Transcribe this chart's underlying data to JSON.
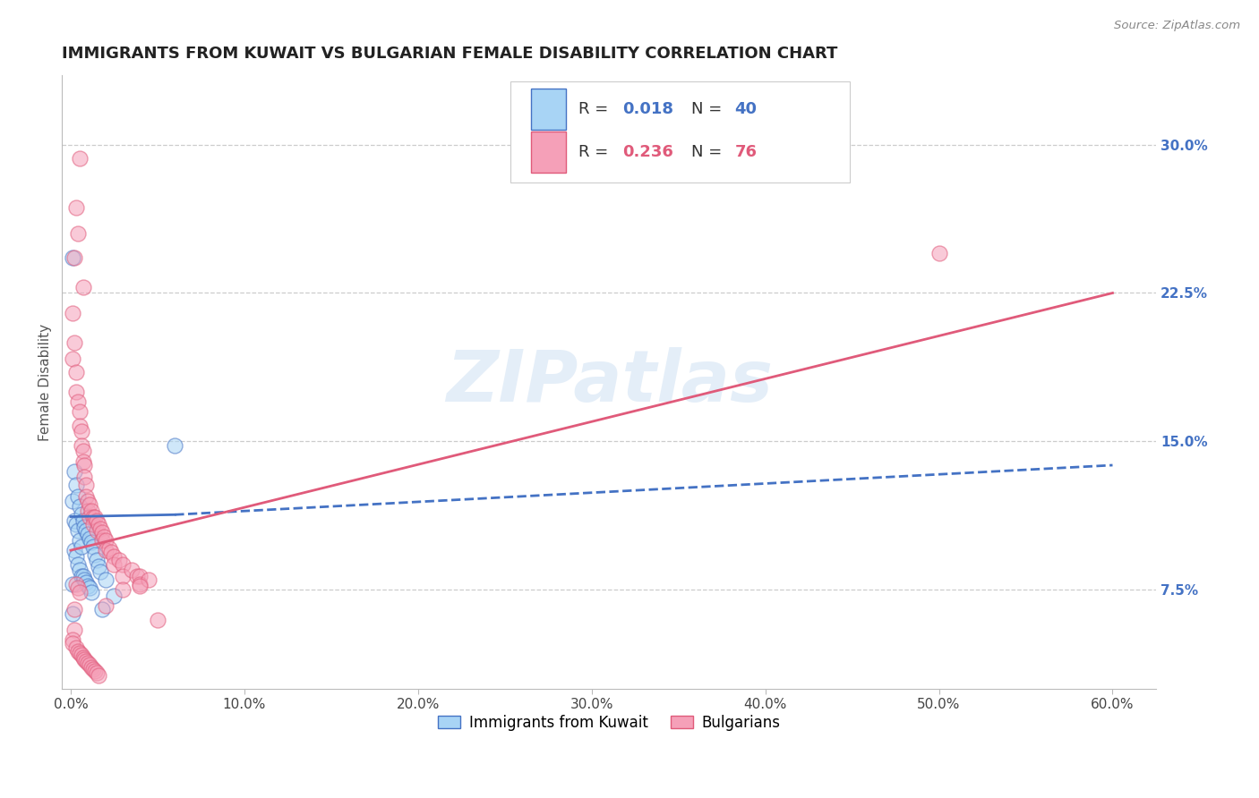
{
  "title": "IMMIGRANTS FROM KUWAIT VS BULGARIAN FEMALE DISABILITY CORRELATION CHART",
  "source": "Source: ZipAtlas.com",
  "ylabel": "Female Disability",
  "xlabel_ticks": [
    "0.0%",
    "10.0%",
    "20.0%",
    "30.0%",
    "40.0%",
    "50.0%",
    "60.0%"
  ],
  "xlabel_vals": [
    0.0,
    0.1,
    0.2,
    0.3,
    0.4,
    0.5,
    0.6
  ],
  "ylabel_ticks": [
    "7.5%",
    "15.0%",
    "22.5%",
    "30.0%"
  ],
  "ylabel_vals": [
    0.075,
    0.15,
    0.225,
    0.3
  ],
  "ylim": [
    0.025,
    0.335
  ],
  "xlim": [
    -0.005,
    0.625
  ],
  "watermark": "ZIPatlas",
  "color_kuwait": "#a8d4f5",
  "color_bulgarian": "#f5a0b8",
  "trendline_kuwait_color": "#4472C4",
  "trendline_bulgarian_color": "#E05A7A",
  "kuwait_scatter_x": [
    0.001,
    0.001,
    0.001,
    0.002,
    0.002,
    0.002,
    0.003,
    0.003,
    0.003,
    0.004,
    0.004,
    0.004,
    0.005,
    0.005,
    0.005,
    0.006,
    0.006,
    0.006,
    0.007,
    0.007,
    0.008,
    0.008,
    0.009,
    0.009,
    0.01,
    0.01,
    0.011,
    0.011,
    0.012,
    0.012,
    0.013,
    0.014,
    0.015,
    0.016,
    0.017,
    0.018,
    0.02,
    0.025,
    0.06,
    0.001
  ],
  "kuwait_scatter_y": [
    0.243,
    0.12,
    0.078,
    0.135,
    0.11,
    0.095,
    0.128,
    0.108,
    0.092,
    0.122,
    0.105,
    0.088,
    0.117,
    0.1,
    0.085,
    0.113,
    0.097,
    0.082,
    0.11,
    0.082,
    0.107,
    0.08,
    0.105,
    0.079,
    0.103,
    0.077,
    0.101,
    0.076,
    0.099,
    0.074,
    0.097,
    0.093,
    0.09,
    0.087,
    0.084,
    0.065,
    0.08,
    0.072,
    0.148,
    0.063
  ],
  "bulgarian_scatter_x": [
    0.005,
    0.003,
    0.004,
    0.002,
    0.007,
    0.001,
    0.002,
    0.001,
    0.003,
    0.003,
    0.004,
    0.005,
    0.005,
    0.006,
    0.006,
    0.007,
    0.007,
    0.008,
    0.008,
    0.009,
    0.009,
    0.01,
    0.01,
    0.011,
    0.011,
    0.012,
    0.013,
    0.013,
    0.014,
    0.015,
    0.015,
    0.016,
    0.017,
    0.018,
    0.018,
    0.019,
    0.02,
    0.02,
    0.022,
    0.023,
    0.025,
    0.025,
    0.028,
    0.03,
    0.03,
    0.035,
    0.038,
    0.04,
    0.04,
    0.045,
    0.02,
    0.03,
    0.04,
    0.002,
    0.05,
    0.002,
    0.5,
    0.001,
    0.001,
    0.003,
    0.004,
    0.005,
    0.006,
    0.007,
    0.008,
    0.009,
    0.01,
    0.011,
    0.012,
    0.013,
    0.014,
    0.015,
    0.016,
    0.003,
    0.004,
    0.005
  ],
  "bulgarian_scatter_y": [
    0.293,
    0.268,
    0.255,
    0.243,
    0.228,
    0.215,
    0.2,
    0.192,
    0.185,
    0.175,
    0.17,
    0.165,
    0.158,
    0.155,
    0.148,
    0.145,
    0.14,
    0.138,
    0.132,
    0.128,
    0.122,
    0.12,
    0.115,
    0.118,
    0.112,
    0.115,
    0.112,
    0.108,
    0.112,
    0.11,
    0.105,
    0.108,
    0.106,
    0.104,
    0.1,
    0.102,
    0.1,
    0.095,
    0.096,
    0.094,
    0.092,
    0.088,
    0.09,
    0.088,
    0.082,
    0.085,
    0.082,
    0.082,
    0.078,
    0.08,
    0.067,
    0.075,
    0.077,
    0.065,
    0.06,
    0.055,
    0.245,
    0.05,
    0.048,
    0.046,
    0.044,
    0.043,
    0.042,
    0.041,
    0.04,
    0.039,
    0.038,
    0.037,
    0.036,
    0.035,
    0.034,
    0.033,
    0.032,
    0.078,
    0.076,
    0.074
  ],
  "trendline_kuwait_x0": 0.0,
  "trendline_kuwait_x_solid_end": 0.06,
  "trendline_kuwait_y0": 0.112,
  "trendline_kuwait_y_solid_end": 0.113,
  "trendline_kuwait_x_dash_end": 0.6,
  "trendline_kuwait_y_dash_end": 0.138,
  "trendline_bulgarian_x0": 0.0,
  "trendline_bulgarian_y0": 0.095,
  "trendline_bulgarian_x1": 0.6,
  "trendline_bulgarian_y1": 0.225
}
